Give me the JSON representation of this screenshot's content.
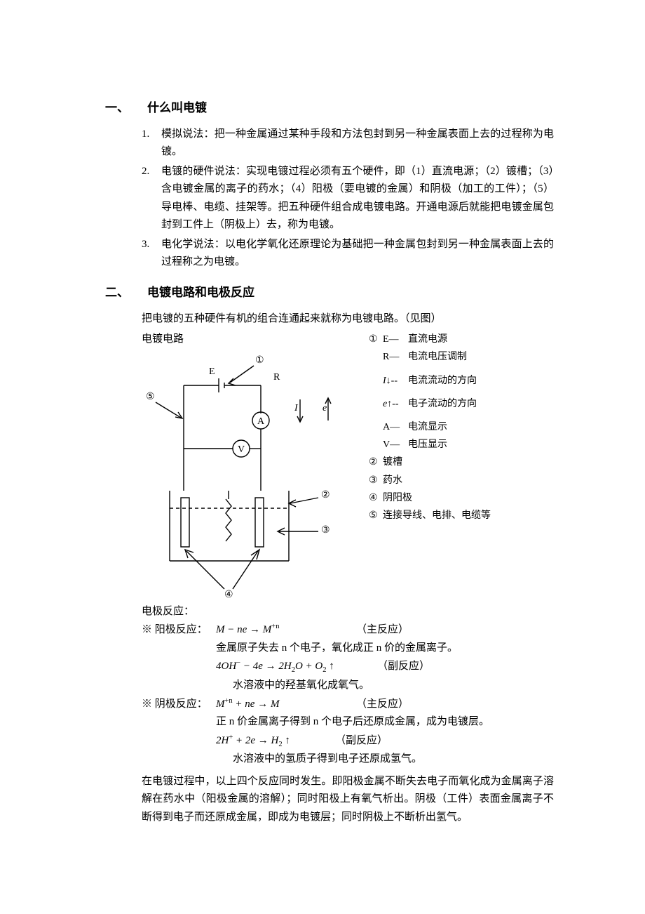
{
  "section1": {
    "number": "一、",
    "title": "什么叫电镀",
    "items": [
      {
        "n": "1.",
        "t": "模拟说法：把一种金属通过某种手段和方法包封到另一种金属表面上去的过程称为电镀。"
      },
      {
        "n": "2.",
        "t": "电镀的硬件说法：实现电镀过程必须有五个硬件，即（1）直流电源；（2）镀槽；（3）含电镀金属的离子的药水；（4）阳极（要电镀的金属）和阴极（加工的工件）；（5）导电棒、电缆、挂架等。把五种硬件组合成电镀电路。开通电源后就能把电镀金属包封到工件上（阴极上）去，称为电镀。"
      },
      {
        "n": "3.",
        "t": "电化学说法：以电化学氧化还原理论为基础把一种金属包封到另一种金属表面上去的过程称之为电镀。"
      }
    ]
  },
  "section2": {
    "number": "二、",
    "title": "电镀电路和电极反应",
    "intro": "把电镀的五种硬件有机的组合连通起来就称为电镀电路。（见图）",
    "diagram_title": "电镀电路",
    "legend": [
      {
        "c": "①",
        "k": "E—",
        "v": "直流电源"
      },
      {
        "c": "",
        "k": "R—",
        "v": "电流电压调制"
      },
      {
        "c": "",
        "k": "I↓--",
        "v": "电流流动的方向",
        "math_k": true
      },
      {
        "c": "",
        "k": "e↑--",
        "v": "电子流动的方向",
        "math_k": true
      },
      {
        "c": "",
        "k": "A—",
        "v": "电流显示"
      },
      {
        "c": "",
        "k": "V—",
        "v": "电压显示"
      },
      {
        "c": "②",
        "k": "",
        "v": "镀槽"
      },
      {
        "c": "③",
        "k": "",
        "v": "药水"
      },
      {
        "c": "④",
        "k": "",
        "v": "阴阳极"
      },
      {
        "c": "⑤",
        "k": "",
        "v": "连接导线、电排、电缆等"
      }
    ],
    "diagram": {
      "labels": {
        "E": "E",
        "R": "R",
        "I": "I",
        "e": "e",
        "A": "A",
        "V": "V",
        "c1": "①",
        "c2": "②",
        "c3": "③",
        "c4": "④",
        "c5": "⑤"
      },
      "stroke": "#000000",
      "stroke_width": 1.4,
      "font_family": "Times New Roman, serif",
      "font_size": 14
    }
  },
  "reactions": {
    "title": "电极反应：",
    "anode": {
      "label": "※ 阳极反应：",
      "main_formula_html": "M − ne → M<span class='sup'>+n</span>",
      "main_note": "（主反应）",
      "main_explain": "金属原子失去 n 个电子，氧化成正 n 价的金属离子。",
      "side_formula_html": "4OH<span class='sup'>−</span> − 4e → 2H<span class='sub'>2</span>O + O<span class='sub'>2</span> ↑",
      "side_note": "（副反应）",
      "side_explain": "水溶液中的羟基氧化成氧气。"
    },
    "cathode": {
      "label": "※ 阴极反应：",
      "main_formula_html": "M<span class='sup'>+n</span> + ne → M",
      "main_note": "（主反应）",
      "main_explain": "正 n 价金属离子得到 n 个电子后还原成金属，成为电镀层。",
      "side_formula_html": "2H<span class='sup'>+</span> + 2e → H<span class='sub'>2</span> ↑",
      "side_note": "（副反应）",
      "side_explain": "水溶液中的氢质子得到电子还原成氢气。"
    },
    "summary": "在电镀过程中，以上四个反应同时发生。即阳极金属不断失去电子而氧化成为金属离子溶解在药水中（阳极金属的溶解）；同时阳极上有氧气析出。阴极（工件）表面金属离子不断得到电子而还原成金属，即成为电镀层；同时阴极上不断析出氢气。"
  }
}
